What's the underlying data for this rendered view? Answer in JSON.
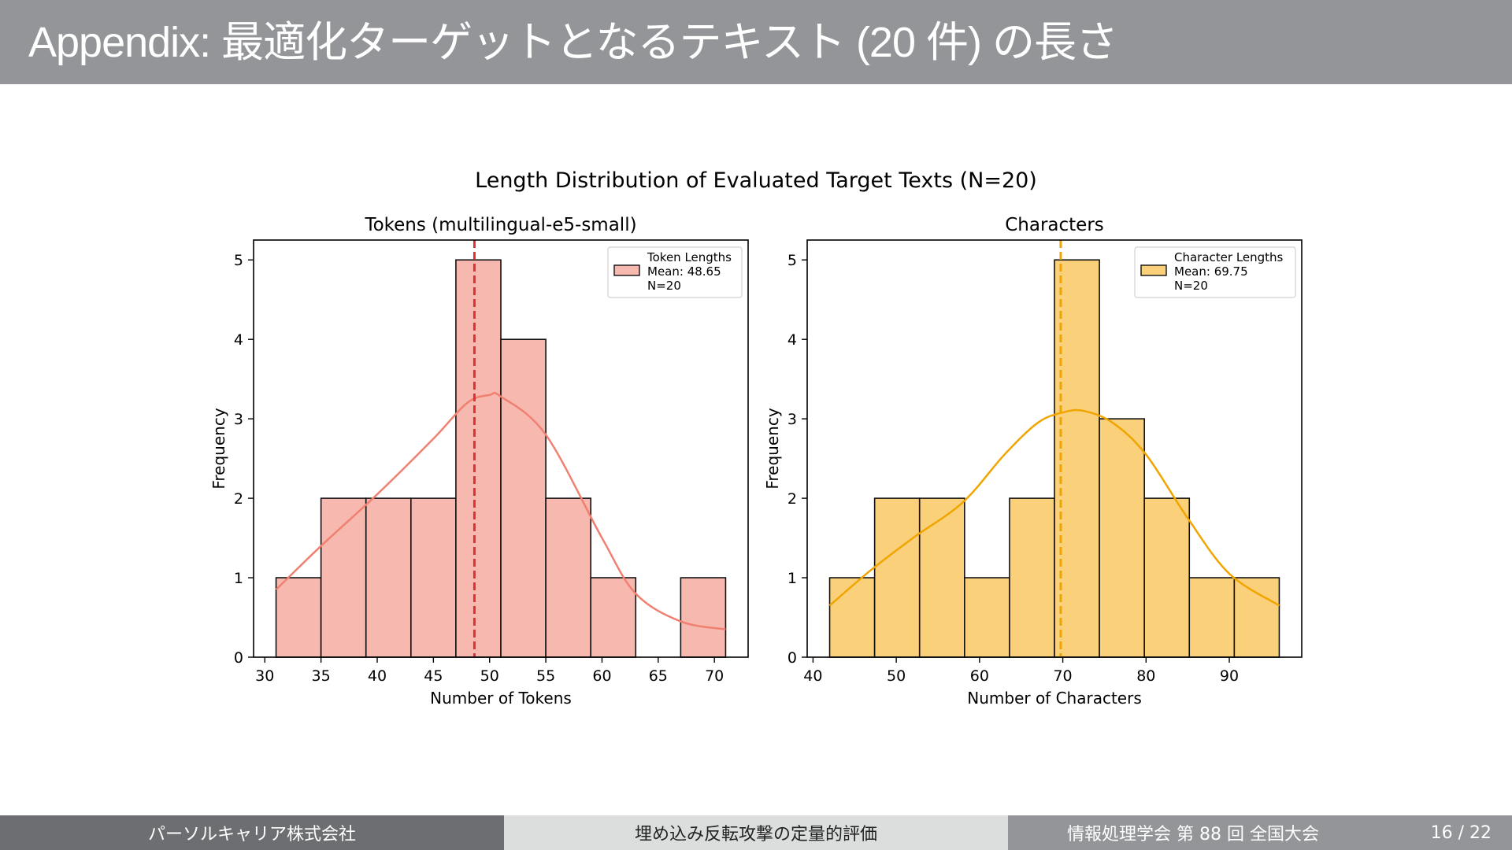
{
  "slide": {
    "title": "Appendix: 最適化ターゲットとなるテキスト (20 件) の長さ"
  },
  "footer": {
    "organization": "パーソルキャリア株式会社",
    "presentation_title": "埋め込み反転攻撃の定量的評価",
    "conference": "情報処理学会 第 88 回 全国大会",
    "page": "16 / 22"
  },
  "chart_data": {
    "suptitle": "Length Distribution of Evaluated Target Texts (N=20)",
    "panels": [
      {
        "type": "bar",
        "title": "Tokens (multilingual-e5-small)",
        "xlabel": "Number of Tokens",
        "ylabel": "Frequency",
        "xlim": [
          29,
          73
        ],
        "ylim": [
          0,
          5.25
        ],
        "xticks": [
          30,
          35,
          40,
          45,
          50,
          55,
          60,
          65,
          70
        ],
        "yticks": [
          0,
          1,
          2,
          3,
          4,
          5
        ],
        "bin_edges": [
          31,
          35,
          39,
          43,
          47,
          51,
          55,
          59,
          63,
          67,
          71
        ],
        "counts": [
          1,
          2,
          2,
          2,
          5,
          4,
          2,
          1,
          0,
          1
        ],
        "mean": 48.65,
        "color": "#f08070",
        "fill": "#f7b8b0",
        "mean_line_color": "#e03131",
        "kde_x": [
          31,
          35,
          40,
          45,
          48,
          50,
          51,
          55,
          60,
          63,
          67,
          71
        ],
        "kde_y": [
          0.85,
          1.4,
          2.05,
          2.75,
          3.2,
          3.3,
          3.28,
          2.8,
          1.5,
          0.8,
          0.45,
          0.35
        ],
        "legend": {
          "label": "Token Lengths",
          "lines": [
            "Mean: 48.65",
            "N=20"
          ],
          "position": "upper right"
        }
      },
      {
        "type": "bar",
        "title": "Characters",
        "xlabel": "Number of Characters",
        "ylabel": "Frequency",
        "xlim": [
          39.3,
          98.7
        ],
        "ylim": [
          0,
          5.25
        ],
        "xticks": [
          40,
          50,
          60,
          70,
          80,
          90
        ],
        "yticks": [
          0,
          1,
          2,
          3,
          4,
          5
        ],
        "bin_edges": [
          42,
          47.4,
          52.8,
          58.2,
          63.6,
          69,
          74.4,
          79.8,
          85.2,
          90.6,
          96
        ],
        "counts": [
          1,
          2,
          2,
          1,
          2,
          5,
          3,
          2,
          1,
          1
        ],
        "mean": 69.75,
        "color": "#f0a500",
        "fill": "#fbd07a",
        "mean_line_color": "#f0a500",
        "kde_x": [
          42,
          47,
          52,
          58,
          63,
          67,
          70,
          72.5,
          76,
          80,
          85,
          90,
          96
        ],
        "kde_y": [
          0.65,
          1.1,
          1.5,
          1.95,
          2.55,
          2.95,
          3.08,
          3.1,
          2.95,
          2.55,
          1.75,
          1.05,
          0.65
        ],
        "legend": {
          "label": "Character Lengths",
          "lines": [
            "Mean: 69.75",
            "N=20"
          ],
          "position": "upper right"
        }
      }
    ]
  }
}
